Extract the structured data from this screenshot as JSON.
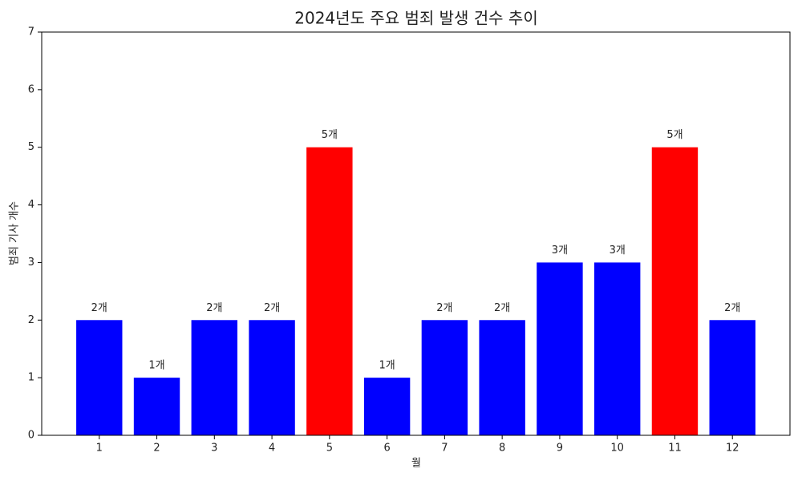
{
  "chart_data": {
    "type": "bar",
    "title": "2024년도 주요 범죄 발생 건수 추이",
    "x_label": "월",
    "y_label": "범죄 기사 개수",
    "categories": [
      "1",
      "2",
      "3",
      "4",
      "5",
      "6",
      "7",
      "8",
      "9",
      "10",
      "11",
      "12"
    ],
    "values": [
      2,
      1,
      2,
      2,
      5,
      1,
      2,
      2,
      3,
      3,
      5,
      2
    ],
    "value_labels": [
      "2개",
      "1개",
      "2개",
      "2개",
      "5개",
      "1개",
      "2개",
      "2개",
      "3개",
      "3개",
      "5개",
      "2개"
    ],
    "colors": [
      "#0000ff",
      "#0000ff",
      "#0000ff",
      "#0000ff",
      "#ff0000",
      "#0000ff",
      "#0000ff",
      "#0000ff",
      "#0000ff",
      "#0000ff",
      "#ff0000",
      "#0000ff"
    ],
    "ylim": [
      0,
      7
    ],
    "yticks": [
      0,
      1,
      2,
      3,
      4,
      5,
      6,
      7
    ],
    "grid": false
  }
}
